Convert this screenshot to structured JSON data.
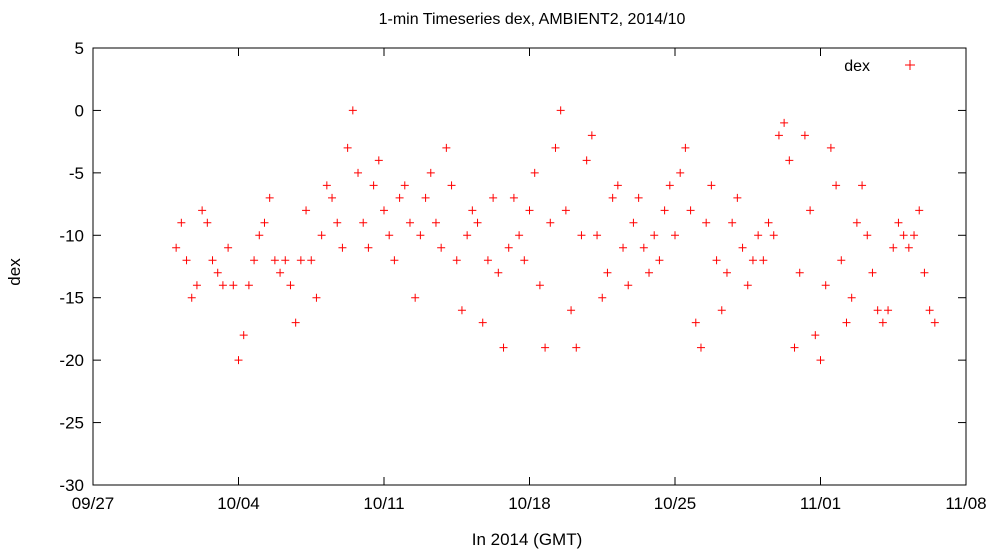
{
  "chart_data": {
    "type": "scatter",
    "title": "1-min Timeseries dex, AMBIENT2, 2014/10",
    "xlabel": "In 2014 (GMT)",
    "ylabel": "dex",
    "legend_position": "top-right",
    "grid": false,
    "xlim": [
      "2014-09-27",
      "2014-11-08"
    ],
    "ylim": [
      -30,
      5
    ],
    "x_ticks": [
      "09/27",
      "10/04",
      "10/11",
      "10/18",
      "10/25",
      "11/01",
      "11/08"
    ],
    "y_ticks": [
      "5",
      "0",
      "-5",
      "-10",
      "-15",
      "-20",
      "-25",
      "-30"
    ],
    "marker": "+",
    "series": [
      {
        "name": "dex",
        "color": "#ff0000",
        "points": [
          [
            "2014-10-01T00:00",
            -11
          ],
          [
            "2014-10-01T06:00",
            -9
          ],
          [
            "2014-10-01T12:00",
            -12
          ],
          [
            "2014-10-01T18:00",
            -15
          ],
          [
            "2014-10-02T00:00",
            -14
          ],
          [
            "2014-10-02T06:00",
            -8
          ],
          [
            "2014-10-02T12:00",
            -9
          ],
          [
            "2014-10-02T18:00",
            -12
          ],
          [
            "2014-10-03T00:00",
            -13
          ],
          [
            "2014-10-03T06:00",
            -14
          ],
          [
            "2014-10-03T12:00",
            -11
          ],
          [
            "2014-10-03T18:00",
            -14
          ],
          [
            "2014-10-04T00:00",
            -20
          ],
          [
            "2014-10-04T06:00",
            -18
          ],
          [
            "2014-10-04T12:00",
            -14
          ],
          [
            "2014-10-04T18:00",
            -12
          ],
          [
            "2014-10-05T00:00",
            -10
          ],
          [
            "2014-10-05T06:00",
            -9
          ],
          [
            "2014-10-05T12:00",
            -7
          ],
          [
            "2014-10-05T18:00",
            -12
          ],
          [
            "2014-10-06T00:00",
            -13
          ],
          [
            "2014-10-06T06:00",
            -12
          ],
          [
            "2014-10-06T12:00",
            -14
          ],
          [
            "2014-10-06T18:00",
            -17
          ],
          [
            "2014-10-07T00:00",
            -12
          ],
          [
            "2014-10-07T06:00",
            -8
          ],
          [
            "2014-10-07T12:00",
            -12
          ],
          [
            "2014-10-07T18:00",
            -15
          ],
          [
            "2014-10-08T00:00",
            -10
          ],
          [
            "2014-10-08T06:00",
            -6
          ],
          [
            "2014-10-08T12:00",
            -7
          ],
          [
            "2014-10-08T18:00",
            -9
          ],
          [
            "2014-10-09T00:00",
            -11
          ],
          [
            "2014-10-09T06:00",
            -3
          ],
          [
            "2014-10-09T12:00",
            0
          ],
          [
            "2014-10-09T18:00",
            -5
          ],
          [
            "2014-10-10T00:00",
            -9
          ],
          [
            "2014-10-10T06:00",
            -11
          ],
          [
            "2014-10-10T12:00",
            -6
          ],
          [
            "2014-10-10T18:00",
            -4
          ],
          [
            "2014-10-11T00:00",
            -8
          ],
          [
            "2014-10-11T06:00",
            -10
          ],
          [
            "2014-10-11T12:00",
            -12
          ],
          [
            "2014-10-11T18:00",
            -7
          ],
          [
            "2014-10-12T00:00",
            -6
          ],
          [
            "2014-10-12T06:00",
            -9
          ],
          [
            "2014-10-12T12:00",
            -15
          ],
          [
            "2014-10-12T18:00",
            -10
          ],
          [
            "2014-10-13T00:00",
            -7
          ],
          [
            "2014-10-13T06:00",
            -5
          ],
          [
            "2014-10-13T12:00",
            -9
          ],
          [
            "2014-10-13T18:00",
            -11
          ],
          [
            "2014-10-14T00:00",
            -3
          ],
          [
            "2014-10-14T06:00",
            -6
          ],
          [
            "2014-10-14T12:00",
            -12
          ],
          [
            "2014-10-14T18:00",
            -16
          ],
          [
            "2014-10-15T00:00",
            -10
          ],
          [
            "2014-10-15T06:00",
            -8
          ],
          [
            "2014-10-15T12:00",
            -9
          ],
          [
            "2014-10-15T18:00",
            -17
          ],
          [
            "2014-10-16T00:00",
            -12
          ],
          [
            "2014-10-16T06:00",
            -7
          ],
          [
            "2014-10-16T12:00",
            -13
          ],
          [
            "2014-10-16T18:00",
            -19
          ],
          [
            "2014-10-17T00:00",
            -11
          ],
          [
            "2014-10-17T06:00",
            -7
          ],
          [
            "2014-10-17T12:00",
            -10
          ],
          [
            "2014-10-17T18:00",
            -12
          ],
          [
            "2014-10-18T00:00",
            -8
          ],
          [
            "2014-10-18T06:00",
            -5
          ],
          [
            "2014-10-18T12:00",
            -14
          ],
          [
            "2014-10-18T18:00",
            -19
          ],
          [
            "2014-10-19T00:00",
            -9
          ],
          [
            "2014-10-19T06:00",
            -3
          ],
          [
            "2014-10-19T12:00",
            0
          ],
          [
            "2014-10-19T18:00",
            -8
          ],
          [
            "2014-10-20T00:00",
            -16
          ],
          [
            "2014-10-20T06:00",
            -19
          ],
          [
            "2014-10-20T12:00",
            -10
          ],
          [
            "2014-10-20T18:00",
            -4
          ],
          [
            "2014-10-21T00:00",
            -2
          ],
          [
            "2014-10-21T06:00",
            -10
          ],
          [
            "2014-10-21T12:00",
            -15
          ],
          [
            "2014-10-21T18:00",
            -13
          ],
          [
            "2014-10-22T00:00",
            -7
          ],
          [
            "2014-10-22T06:00",
            -6
          ],
          [
            "2014-10-22T12:00",
            -11
          ],
          [
            "2014-10-22T18:00",
            -14
          ],
          [
            "2014-10-23T00:00",
            -9
          ],
          [
            "2014-10-23T06:00",
            -7
          ],
          [
            "2014-10-23T12:00",
            -11
          ],
          [
            "2014-10-23T18:00",
            -13
          ],
          [
            "2014-10-24T00:00",
            -10
          ],
          [
            "2014-10-24T06:00",
            -12
          ],
          [
            "2014-10-24T12:00",
            -8
          ],
          [
            "2014-10-24T18:00",
            -6
          ],
          [
            "2014-10-25T00:00",
            -10
          ],
          [
            "2014-10-25T06:00",
            -5
          ],
          [
            "2014-10-25T12:00",
            -3
          ],
          [
            "2014-10-25T18:00",
            -8
          ],
          [
            "2014-10-26T00:00",
            -17
          ],
          [
            "2014-10-26T06:00",
            -19
          ],
          [
            "2014-10-26T12:00",
            -9
          ],
          [
            "2014-10-26T18:00",
            -6
          ],
          [
            "2014-10-27T00:00",
            -12
          ],
          [
            "2014-10-27T06:00",
            -16
          ],
          [
            "2014-10-27T12:00",
            -13
          ],
          [
            "2014-10-27T18:00",
            -9
          ],
          [
            "2014-10-28T00:00",
            -7
          ],
          [
            "2014-10-28T06:00",
            -11
          ],
          [
            "2014-10-28T12:00",
            -14
          ],
          [
            "2014-10-28T18:00",
            -12
          ],
          [
            "2014-10-29T00:00",
            -10
          ],
          [
            "2014-10-29T06:00",
            -12
          ],
          [
            "2014-10-29T12:00",
            -9
          ],
          [
            "2014-10-29T18:00",
            -10
          ],
          [
            "2014-10-30T00:00",
            -2
          ],
          [
            "2014-10-30T06:00",
            -1
          ],
          [
            "2014-10-30T12:00",
            -4
          ],
          [
            "2014-10-30T18:00",
            -19
          ],
          [
            "2014-10-31T00:00",
            -13
          ],
          [
            "2014-10-31T06:00",
            -2
          ],
          [
            "2014-10-31T12:00",
            -8
          ],
          [
            "2014-10-31T18:00",
            -18
          ],
          [
            "2014-11-01T00:00",
            -20
          ],
          [
            "2014-11-01T06:00",
            -14
          ],
          [
            "2014-11-01T12:00",
            -3
          ],
          [
            "2014-11-01T18:00",
            -6
          ],
          [
            "2014-11-02T00:00",
            -12
          ],
          [
            "2014-11-02T06:00",
            -17
          ],
          [
            "2014-11-02T12:00",
            -15
          ],
          [
            "2014-11-02T18:00",
            -9
          ],
          [
            "2014-11-03T00:00",
            -6
          ],
          [
            "2014-11-03T06:00",
            -10
          ],
          [
            "2014-11-03T12:00",
            -13
          ],
          [
            "2014-11-03T18:00",
            -16
          ],
          [
            "2014-11-04T00:00",
            -17
          ],
          [
            "2014-11-04T06:00",
            -16
          ],
          [
            "2014-11-04T12:00",
            -11
          ],
          [
            "2014-11-04T18:00",
            -9
          ],
          [
            "2014-11-05T00:00",
            -10
          ],
          [
            "2014-11-05T06:00",
            -11
          ],
          [
            "2014-11-05T12:00",
            -10
          ],
          [
            "2014-11-05T18:00",
            -8
          ],
          [
            "2014-11-06T00:00",
            -13
          ],
          [
            "2014-11-06T06:00",
            -16
          ],
          [
            "2014-11-06T12:00",
            -17
          ]
        ]
      }
    ]
  }
}
